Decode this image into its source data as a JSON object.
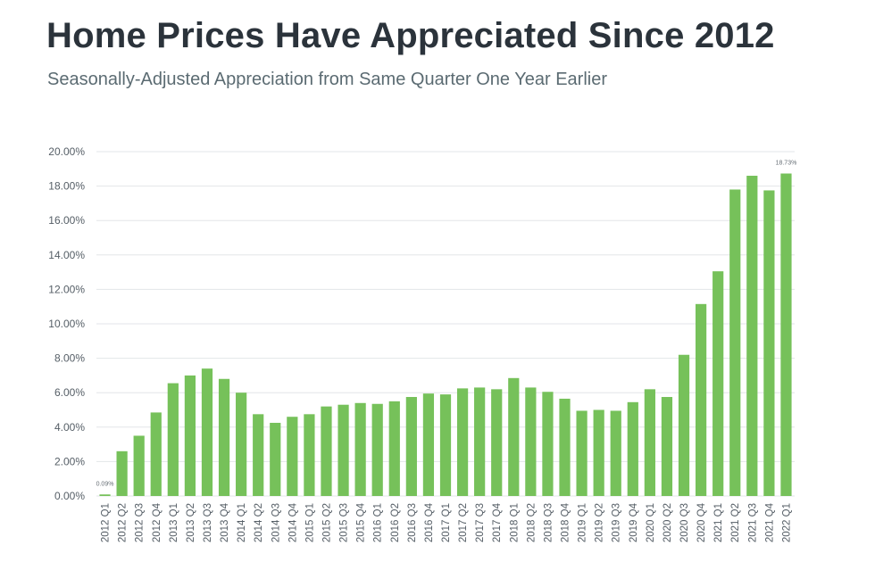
{
  "header": {
    "title": "Home Prices Have Appreciated Since 2012",
    "subtitle": "Seasonally-Adjusted Appreciation from Same Quarter One Year Earlier"
  },
  "chart_data": {
    "type": "bar",
    "title": "Home Prices Have Appreciated Since 2012",
    "subtitle": "Seasonally-Adjusted Appreciation from Same Quarter One Year Earlier",
    "xlabel": "",
    "ylabel": "",
    "ylim": [
      0,
      20
    ],
    "yticks": [
      "0.00%",
      "2.00%",
      "4.00%",
      "6.00%",
      "8.00%",
      "10.00%",
      "12.00%",
      "14.00%",
      "16.00%",
      "18.00%",
      "20.00%"
    ],
    "grid": true,
    "bar_color": "#76c15a",
    "categories": [
      "2012 Q1",
      "2012 Q2",
      "2012 Q3",
      "2012 Q4",
      "2013 Q1",
      "2013 Q2",
      "2013 Q3",
      "2013 Q4",
      "2014 Q1",
      "2014 Q2",
      "2014 Q3",
      "2014 Q4",
      "2015 Q1",
      "2015 Q2",
      "2015 Q3",
      "2015 Q4",
      "2016 Q1",
      "2016 Q2",
      "2016 Q3",
      "2016 Q4",
      "2017 Q1",
      "2017 Q2",
      "2017 Q3",
      "2017 Q4",
      "2018 Q1",
      "2018 Q2",
      "2018 Q3",
      "2018 Q4",
      "2019 Q1",
      "2019 Q2",
      "2019 Q3",
      "2019 Q4",
      "2020 Q1",
      "2020 Q2",
      "2020 Q3",
      "2020 Q4",
      "2021 Q1",
      "2021 Q2",
      "2021 Q3",
      "2021 Q4",
      "2022 Q1"
    ],
    "values": [
      0.09,
      2.6,
      3.5,
      4.85,
      6.55,
      7.0,
      7.4,
      6.8,
      6.0,
      4.75,
      4.25,
      4.6,
      4.75,
      5.2,
      5.3,
      5.4,
      5.35,
      5.5,
      5.75,
      5.95,
      5.9,
      6.25,
      6.3,
      6.2,
      6.85,
      6.3,
      6.05,
      5.65,
      4.95,
      5.0,
      4.95,
      5.45,
      6.2,
      5.75,
      8.2,
      11.15,
      13.05,
      17.8,
      18.6,
      17.75,
      18.73
    ],
    "data_labels": [
      {
        "category": "2012 Q1",
        "text": "0.09%"
      },
      {
        "category": "2022 Q1",
        "text": "18.73%"
      }
    ]
  }
}
